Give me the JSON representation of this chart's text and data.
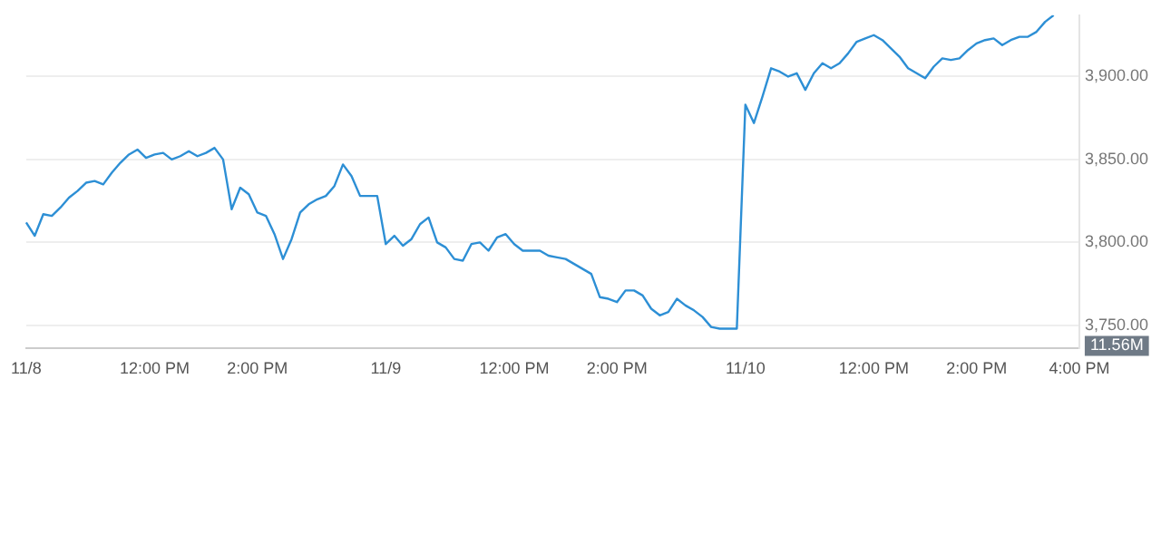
{
  "chart_data": {
    "type": "line",
    "categories": [
      "11/8",
      null,
      null,
      null,
      null,
      null,
      null,
      null,
      null,
      null,
      null,
      null,
      null,
      null,
      null,
      "12:00 PM",
      null,
      null,
      null,
      null,
      null,
      null,
      null,
      null,
      null,
      null,
      null,
      "2:00 PM",
      null,
      null,
      null,
      null,
      null,
      null,
      null,
      null,
      null,
      null,
      null,
      null,
      null,
      null,
      "11/9",
      null,
      null,
      null,
      null,
      null,
      null,
      null,
      null,
      null,
      null,
      null,
      null,
      null,
      null,
      "12:00 PM",
      null,
      null,
      null,
      null,
      null,
      null,
      null,
      null,
      null,
      null,
      null,
      "2:00 PM",
      null,
      null,
      null,
      null,
      null,
      null,
      null,
      null,
      null,
      null,
      null,
      null,
      null,
      null,
      "11/10",
      null,
      null,
      null,
      null,
      null,
      null,
      null,
      null,
      null,
      null,
      null,
      null,
      null,
      null,
      "12:00 PM",
      null,
      null,
      null,
      null,
      null,
      null,
      null,
      null,
      null,
      null,
      null,
      "2:00 PM",
      null,
      null,
      null,
      null,
      null,
      null,
      null,
      null,
      null,
      null,
      null,
      "4:00 PM"
    ],
    "series": [
      {
        "color": "#2d8fd5",
        "values": [
          3812,
          3804,
          3817,
          3816,
          3821,
          3827,
          3831,
          3836,
          3837,
          3835,
          3842,
          3848,
          3853,
          3856,
          3851,
          3853,
          3854,
          3850,
          3852,
          3855,
          3852,
          3854,
          3857,
          3850,
          3820,
          3833,
          3829,
          3818,
          3816,
          3805,
          3790,
          3802,
          3818,
          3823,
          3826,
          3828,
          3834,
          3847,
          3840,
          3828,
          3828,
          3828,
          3799,
          3804,
          3798,
          3802,
          3811,
          3815,
          3800,
          3797,
          3790,
          3789,
          3799,
          3800,
          3795,
          3803,
          3805,
          3799,
          3795,
          3795,
          3795,
          3792,
          3791,
          3790,
          3787,
          3784,
          3781,
          3767,
          3766,
          3764,
          3771,
          3771,
          3768,
          3760,
          3756,
          3758,
          3766,
          3762,
          3759,
          3755,
          3749,
          3748,
          3748,
          3748,
          3883,
          3872,
          3888,
          3905,
          3903,
          3900,
          3902,
          3892,
          3902,
          3908,
          3905,
          3908,
          3914,
          3921,
          3923,
          3925,
          3922,
          3917,
          3912,
          3905,
          3902,
          3899,
          3906,
          3911,
          3910,
          3911,
          3916,
          3920,
          3922,
          3923,
          3919,
          3922,
          3924,
          3924,
          3927,
          3933,
          3937,
          null,
          null,
          null
        ]
      }
    ],
    "ylim": [
      3736,
      3937
    ],
    "yticks": [
      {
        "value": 3750,
        "label": "3,750.00"
      },
      {
        "value": 3800,
        "label": "3,800.00"
      },
      {
        "value": 3850,
        "label": "3,850.00"
      },
      {
        "value": 3900,
        "label": "3,900.00"
      }
    ],
    "annotations": [
      "11.56M"
    ],
    "grid": "y",
    "legend": false,
    "marker": "none",
    "line_style": "solid"
  }
}
